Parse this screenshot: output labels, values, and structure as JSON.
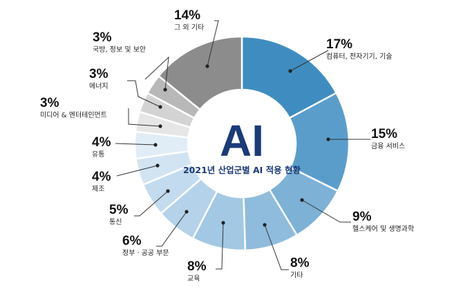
{
  "chart_data": {
    "type": "pie",
    "style": "donut",
    "center_big": "AI",
    "title": "2021년 산업군별 AI 적용 현황",
    "slices": [
      {
        "label": "컴퓨터, 전자기기, 기술",
        "value": 17,
        "value_label": "17%",
        "color": "#3f8dc0"
      },
      {
        "label": "금융 서비스",
        "value": 15,
        "value_label": "15%",
        "color": "#5a9dcb"
      },
      {
        "label": "헬스케어 및 생명과학",
        "value": 9,
        "value_label": "9%",
        "color": "#7db1d6"
      },
      {
        "label": "기타",
        "value": 8,
        "value_label": "8%",
        "color": "#8fbcdc"
      },
      {
        "label": "교육",
        "value": 8,
        "value_label": "8%",
        "color": "#a2c8e3"
      },
      {
        "label": "정부ㆍ공공 부문",
        "value": 6,
        "value_label": "6%",
        "color": "#b4d2e9"
      },
      {
        "label": "통신",
        "value": 5,
        "value_label": "5%",
        "color": "#c3dbee"
      },
      {
        "label": "제조",
        "value": 4,
        "value_label": "4%",
        "color": "#d2e4f2"
      },
      {
        "label": "유통",
        "value": 4,
        "value_label": "4%",
        "color": "#e0ecf6"
      },
      {
        "label": "미디어 & 엔터테인먼트",
        "value": 3,
        "value_label": "3%",
        "color": "#e6e6e6"
      },
      {
        "label": "에너지",
        "value": 3,
        "value_label": "3%",
        "color": "#d3d3d3"
      },
      {
        "label": "국방, 정보 및 보안",
        "value": 3,
        "value_label": "3%",
        "color": "#b8b8b8"
      },
      {
        "label": "그 외 기타",
        "value": 14,
        "value_label": "14%",
        "color": "#8c8c8c"
      }
    ]
  }
}
